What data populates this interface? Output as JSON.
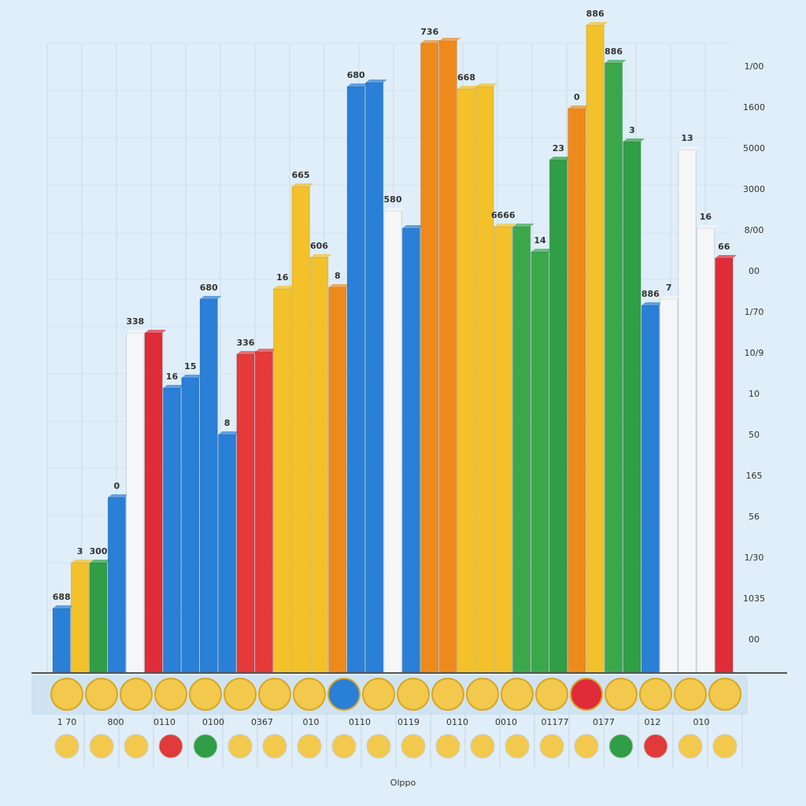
{
  "chart_data": {
    "type": "bar",
    "values": [
      82,
      140,
      140,
      223,
      432,
      432,
      362,
      375,
      475,
      303,
      405,
      408,
      488,
      618,
      528,
      490,
      745,
      750,
      587,
      565,
      800,
      803,
      742,
      745,
      567,
      567,
      535,
      652,
      717,
      823,
      775,
      675,
      467,
      475,
      665,
      565,
      527
    ],
    "colors": [
      "#2a7fd6",
      "#f3c12a",
      "#2f9e46",
      "#2a7fd6",
      "#f4f6f8",
      "#e02b38",
      "#2a7fd6",
      "#2a7fd6",
      "#2a7fd6",
      "#2a7fd6",
      "#e63a3a",
      "#e63a3a",
      "#f3c12a",
      "#f3c12a",
      "#f3c12a",
      "#ee8a1c",
      "#2a7fd6",
      "#2a7fd6",
      "#f4f6f8",
      "#2a7fd6",
      "#ee8a1c",
      "#ee8a1c",
      "#f3c12a",
      "#f3c12a",
      "#f3c12a",
      "#3aa84a",
      "#3aa84a",
      "#2f9e46",
      "#ee8a1c",
      "#f3c12a",
      "#3aa84a",
      "#2f9e46",
      "#2a7fd6",
      "#f4f6f8",
      "#f4f6f8",
      "#f4f6f8",
      "#e02b38"
    ],
    "annotations": [
      "688",
      "3",
      "300",
      "0",
      "338",
      null,
      "16",
      "15",
      "680",
      "8",
      "336",
      null,
      "16",
      "665",
      "606",
      "8",
      "680",
      null,
      "580",
      null,
      "736",
      null,
      "668",
      null,
      "6666",
      null,
      "14",
      "23",
      "0",
      "886",
      "886",
      "3",
      "886",
      "7",
      "13",
      "16",
      "66"
    ],
    "ylim": [
      0,
      800
    ],
    "right_labels": [
      "1/00",
      "1600",
      "5000",
      "3000",
      "8/00",
      "00",
      "1/70",
      "10/9",
      "10",
      "50",
      "165",
      "56",
      "1/30",
      "1035",
      "00"
    ],
    "coin_labels": [
      "1 70",
      "800",
      "0110",
      "0100",
      "0367",
      "010",
      "0110",
      "0119",
      "0110",
      "0010",
      "01177",
      "0177",
      "012",
      "010"
    ],
    "footer": "Olppo"
  }
}
